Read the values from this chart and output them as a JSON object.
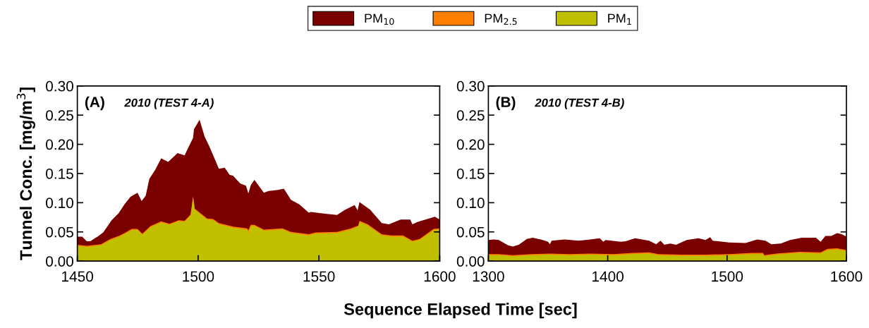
{
  "chart_data": [
    {
      "type": "area",
      "title": "(A)",
      "subtitle": "2010 (TEST 4-A)",
      "ylabel": "Tunnel Conc. [mg/m$^{3}$]",
      "xlabel": "Sequence Elapsed Time [sec]",
      "legend": "top",
      "xlim": [
        1450,
        1600
      ],
      "xticks": [
        1450,
        1500,
        1550,
        1600
      ],
      "ylim": [
        0,
        0.3
      ],
      "yticks": [
        {
          "value": 0,
          "label": "0.00"
        },
        {
          "value": 0.05,
          "label": "0.05"
        },
        {
          "value": 0.1,
          "label": "0.10"
        },
        {
          "value": 0.15,
          "label": "0.15"
        },
        {
          "value": 0.2,
          "label": "0.20"
        },
        {
          "value": 0.25,
          "label": "0.25"
        },
        {
          "value": 0.3,
          "label": "0.30"
        }
      ],
      "grid": false,
      "series": [
        {
          "name": "PM$_{10}$",
          "color": "#7a0000",
          "x": [
            1450,
            1452,
            1453.9,
            1455.4,
            1456.8,
            1458.8,
            1460.7,
            1462.7,
            1464.2,
            1467.1,
            1469.5,
            1472,
            1474.9,
            1476.6,
            1478.3,
            1479.8,
            1482.2,
            1484.7,
            1487.6,
            1491.5,
            1494.4,
            1495.9,
            1497.9,
            1498.3,
            1500.6,
            1502.7,
            1504.7,
            1508.6,
            1511,
            1513,
            1514.5,
            1517.4,
            1519.8,
            1520.8,
            1521.8,
            1523.3,
            1527.2,
            1529.2,
            1533.1,
            1535.5,
            1538.4,
            1541.9,
            1545.8,
            1546.7,
            1552.6,
            1557.5,
            1560.9,
            1564.8,
            1566,
            1566.8,
            1571.2,
            1576,
            1579,
            1583.8,
            1587.8,
            1588.7,
            1590.7,
            1595.6,
            1598,
            1600
          ],
          "values": [
            0.042,
            0.042,
            0.034,
            0.034,
            0.038,
            0.043,
            0.049,
            0.061,
            0.07,
            0.082,
            0.097,
            0.11,
            0.117,
            0.103,
            0.112,
            0.141,
            0.156,
            0.176,
            0.17,
            0.185,
            0.181,
            0.194,
            0.211,
            0.226,
            0.242,
            0.213,
            0.196,
            0.158,
            0.16,
            0.148,
            0.146,
            0.133,
            0.129,
            0.116,
            0.13,
            0.139,
            0.117,
            0.12,
            0.122,
            0.124,
            0.105,
            0.097,
            0.083,
            0.084,
            0.081,
            0.079,
            0.088,
            0.096,
            0.087,
            0.101,
            0.088,
            0.065,
            0.063,
            0.071,
            0.071,
            0.063,
            0.067,
            0.073,
            0.076,
            0.071
          ]
        },
        {
          "name": "PM$_{2.5}$",
          "color": "#ff8000",
          "x": [
            1450,
            1453.9,
            1459.8,
            1463.7,
            1467.1,
            1469.5,
            1472.5,
            1474.9,
            1476.9,
            1480.3,
            1484.7,
            1488.1,
            1492,
            1494.4,
            1496.9,
            1497.9,
            1498.6,
            1503.7,
            1506.2,
            1508.6,
            1514.5,
            1520.3,
            1520.8,
            1521.8,
            1523.3,
            1527.2,
            1535,
            1538.4,
            1545.8,
            1548.7,
            1557.5,
            1563.3,
            1566.3,
            1566.8,
            1570.2,
            1576,
            1579.9,
            1584.8,
            1588.7,
            1591.7,
            1597.5,
            1600
          ],
          "values": [
            0.028,
            0.026,
            0.029,
            0.038,
            0.043,
            0.048,
            0.055,
            0.055,
            0.047,
            0.06,
            0.068,
            0.064,
            0.07,
            0.069,
            0.08,
            0.111,
            0.09,
            0.073,
            0.072,
            0.065,
            0.059,
            0.056,
            0.053,
            0.062,
            0.062,
            0.054,
            0.056,
            0.05,
            0.046,
            0.049,
            0.05,
            0.056,
            0.061,
            0.069,
            0.063,
            0.046,
            0.044,
            0.044,
            0.035,
            0.038,
            0.055,
            0.056
          ]
        },
        {
          "name": "PM$_{1}$",
          "color": "#c0c000",
          "x": [
            1450,
            1453.9,
            1459.8,
            1463.7,
            1467.1,
            1469.5,
            1472.5,
            1474.9,
            1476.9,
            1480.3,
            1484.7,
            1488.1,
            1492,
            1494.4,
            1496.9,
            1497.9,
            1498.6,
            1503.7,
            1506.2,
            1508.6,
            1514.5,
            1520.3,
            1520.8,
            1521.8,
            1523.3,
            1527.2,
            1535,
            1538.4,
            1545.8,
            1548.7,
            1557.5,
            1563.3,
            1566.3,
            1566.8,
            1570.2,
            1576,
            1579.9,
            1584.8,
            1588.7,
            1591.7,
            1597.5,
            1600
          ],
          "values": [
            0.026,
            0.024,
            0.027,
            0.036,
            0.041,
            0.046,
            0.053,
            0.053,
            0.045,
            0.058,
            0.066,
            0.062,
            0.068,
            0.067,
            0.078,
            0.109,
            0.088,
            0.071,
            0.07,
            0.063,
            0.057,
            0.054,
            0.048,
            0.06,
            0.06,
            0.052,
            0.054,
            0.048,
            0.044,
            0.047,
            0.048,
            0.054,
            0.059,
            0.067,
            0.061,
            0.044,
            0.042,
            0.042,
            0.033,
            0.036,
            0.053,
            0.054
          ]
        }
      ]
    },
    {
      "type": "area",
      "title": "(B)",
      "subtitle": "2010 (TEST 4-B)",
      "xlim": [
        1300,
        1600
      ],
      "xticks": [
        1300,
        1400,
        1500,
        1600
      ],
      "ylim": [
        0,
        0.3
      ],
      "yticks": [
        {
          "value": 0,
          "label": "0.00"
        },
        {
          "value": 0.05,
          "label": "0.05"
        },
        {
          "value": 0.1,
          "label": "0.10"
        },
        {
          "value": 0.15,
          "label": "0.15"
        },
        {
          "value": 0.2,
          "label": "0.20"
        },
        {
          "value": 0.25,
          "label": "0.25"
        },
        {
          "value": 0.3,
          "label": "0.30"
        }
      ],
      "grid": false,
      "series": [
        {
          "color": "#7a0000",
          "x": [
            1300,
            1304.7,
            1308.7,
            1316.5,
            1320.5,
            1325.4,
            1332.3,
            1337.2,
            1344,
            1350,
            1351.6,
            1353,
            1363.8,
            1375.6,
            1385.4,
            1393.3,
            1396.3,
            1398.2,
            1411,
            1415,
            1422.9,
            1434.7,
            1440.6,
            1444.2,
            1447.5,
            1452.4,
            1457.3,
            1466.2,
            1476,
            1481.9,
            1485.9,
            1487.9,
            1501.6,
            1515.4,
            1525.3,
            1532.2,
            1537.1,
            1545,
            1552.8,
            1562.7,
            1574.5,
            1578.4,
            1582.4,
            1587.3,
            1592.2,
            1596.1,
            1600
          ],
          "values": [
            0.036,
            0.037,
            0.036,
            0.027,
            0.025,
            0.028,
            0.038,
            0.04,
            0.037,
            0.033,
            0.029,
            0.035,
            0.037,
            0.035,
            0.037,
            0.039,
            0.033,
            0.036,
            0.033,
            0.034,
            0.039,
            0.035,
            0.029,
            0.035,
            0.028,
            0.03,
            0.028,
            0.036,
            0.039,
            0.036,
            0.041,
            0.035,
            0.032,
            0.031,
            0.037,
            0.035,
            0.029,
            0.03,
            0.036,
            0.04,
            0.04,
            0.033,
            0.043,
            0.043,
            0.048,
            0.046,
            0.042
          ]
        },
        {
          "color": "#ff8000",
          "x": [
            1300,
            1308.7,
            1320.5,
            1336.2,
            1352,
            1367.7,
            1385.4,
            1405.1,
            1420.9,
            1434.6,
            1442.6,
            1462.3,
            1482,
            1501.6,
            1521.3,
            1530.2,
            1531.2,
            1541,
            1560.7,
            1578.4,
            1584.3,
            1592.2,
            1600
          ],
          "values": [
            0.012,
            0.012,
            0.01,
            0.012,
            0.013,
            0.012,
            0.013,
            0.012,
            0.014,
            0.015,
            0.012,
            0.011,
            0.011,
            0.012,
            0.014,
            0.014,
            0.01,
            0.013,
            0.016,
            0.015,
            0.021,
            0.022,
            0.019
          ]
        },
        {
          "color": "#c0c000",
          "x": [
            1300,
            1308.7,
            1320.5,
            1336.2,
            1352,
            1367.7,
            1385.4,
            1405.1,
            1420.9,
            1434.6,
            1442.6,
            1462.3,
            1482,
            1501.6,
            1521.3,
            1530.2,
            1531.2,
            1541,
            1560.7,
            1578.4,
            1584.3,
            1592.2,
            1600
          ],
          "values": [
            0.01,
            0.01,
            0.008,
            0.01,
            0.011,
            0.01,
            0.011,
            0.01,
            0.012,
            0.013,
            0.01,
            0.009,
            0.009,
            0.01,
            0.012,
            0.012,
            0.008,
            0.011,
            0.014,
            0.013,
            0.019,
            0.02,
            0.017
          ]
        }
      ]
    }
  ]
}
